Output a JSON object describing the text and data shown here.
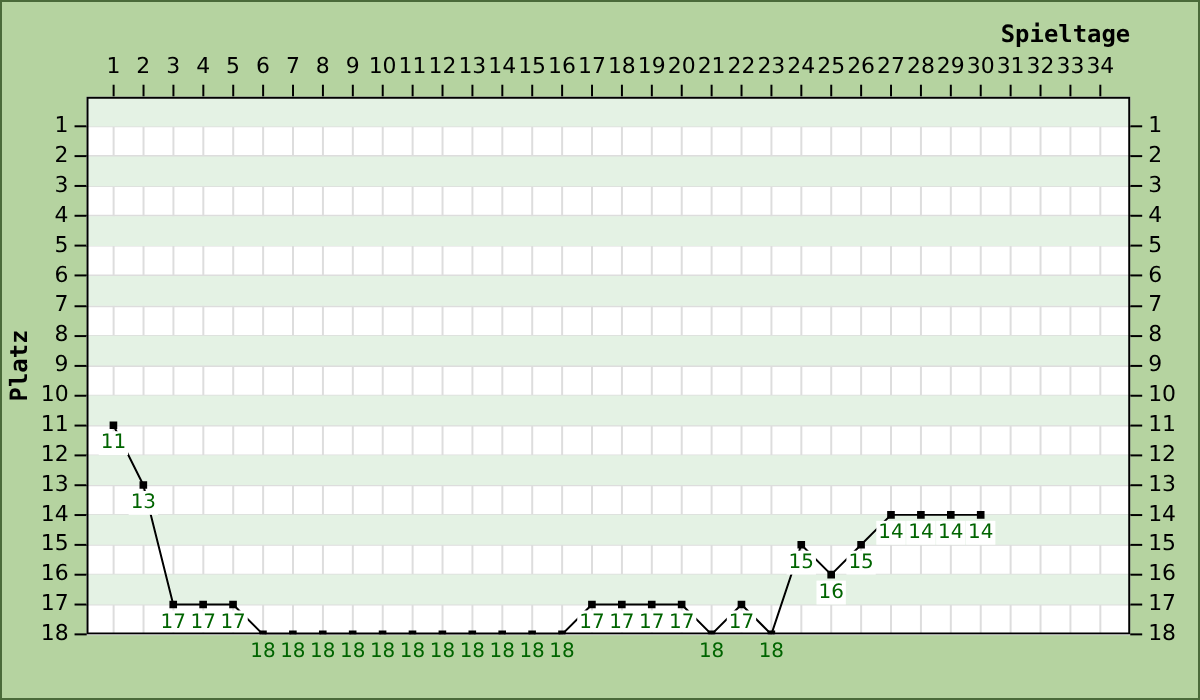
{
  "chart_data": {
    "type": "line",
    "xlabel": "Spieltage",
    "ylabel": "Platz",
    "x": [
      1,
      2,
      3,
      4,
      5,
      6,
      7,
      8,
      9,
      10,
      11,
      12,
      13,
      14,
      15,
      16,
      17,
      18,
      19,
      20,
      21,
      22,
      23,
      24,
      25,
      26,
      27,
      28,
      29,
      30
    ],
    "series": [
      {
        "color": "#000000",
        "values": [
          11,
          13,
          17,
          17,
          17,
          18,
          18,
          18,
          18,
          18,
          18,
          18,
          18,
          18,
          18,
          18,
          17,
          17,
          17,
          17,
          18,
          17,
          18,
          15,
          16,
          15,
          14,
          14,
          14,
          14
        ]
      }
    ],
    "xlim": [
      0.1,
      35
    ],
    "xticks": [
      1,
      2,
      3,
      4,
      5,
      6,
      7,
      8,
      9,
      10,
      11,
      12,
      13,
      14,
      15,
      16,
      17,
      18,
      19,
      20,
      21,
      22,
      23,
      24,
      25,
      26,
      27,
      28,
      29,
      30,
      31,
      32,
      33,
      34
    ],
    "ylim": [
      18,
      0
    ],
    "yticks": [
      1,
      2,
      3,
      4,
      5,
      6,
      7,
      8,
      9,
      10,
      11,
      12,
      13,
      14,
      15,
      16,
      17,
      18
    ],
    "y2lim": [
      18,
      0
    ],
    "y2ticks": [
      1,
      2,
      3,
      4,
      5,
      6,
      7,
      8,
      9,
      10,
      11,
      12,
      13,
      14,
      15,
      16,
      17,
      18
    ],
    "bands": [
      {
        "axis": "y",
        "from": 0,
        "to": 1,
        "color": "#e4f2e4"
      },
      {
        "axis": "y",
        "from": 2,
        "to": 3,
        "color": "#e4f2e4"
      },
      {
        "axis": "y",
        "from": 4,
        "to": 5,
        "color": "#e4f2e4"
      },
      {
        "axis": "y",
        "from": 6,
        "to": 7,
        "color": "#e4f2e4"
      },
      {
        "axis": "y",
        "from": 8,
        "to": 9,
        "color": "#e4f2e4"
      },
      {
        "axis": "y",
        "from": 10,
        "to": 11,
        "color": "#e4f2e4"
      },
      {
        "axis": "y",
        "from": 12,
        "to": 13,
        "color": "#e4f2e4"
      },
      {
        "axis": "y",
        "from": 14,
        "to": 15,
        "color": "#e4f2e4"
      },
      {
        "axis": "y",
        "from": 16,
        "to": 17,
        "color": "#e4f2e4"
      }
    ],
    "data_labels": true,
    "grid": true,
    "legend": false,
    "marker": "square",
    "line_style": "solid"
  }
}
